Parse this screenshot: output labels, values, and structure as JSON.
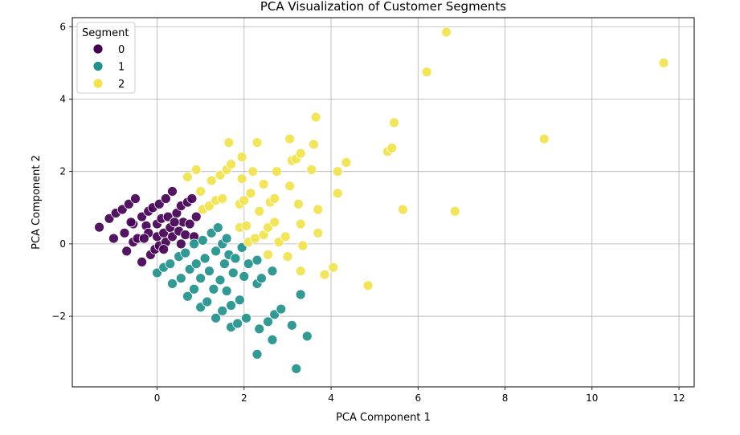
{
  "chart_data": {
    "type": "scatter",
    "title": "PCA Visualization of Customer Segments",
    "xlabel": "PCA Component 1",
    "ylabel": "PCA Component 2",
    "xlim": [
      -1.95,
      12.35
    ],
    "ylim": [
      -3.95,
      6.25
    ],
    "xticks": [
      0,
      2,
      4,
      6,
      8,
      10,
      12
    ],
    "yticks": [
      -2,
      0,
      2,
      4,
      6
    ],
    "xtick_labels": [
      "0",
      "2",
      "4",
      "6",
      "8",
      "10",
      "12"
    ],
    "ytick_labels": [
      "−2",
      "0",
      "2",
      "4",
      "6"
    ],
    "grid": true,
    "legend": {
      "title": "Segment",
      "placement": "top-left"
    },
    "series": [
      {
        "name": "0",
        "color": "#440154",
        "points": [
          [
            -1.33,
            0.46
          ],
          [
            -1.1,
            0.7
          ],
          [
            -1.0,
            0.15
          ],
          [
            -0.95,
            0.85
          ],
          [
            -0.8,
            0.95
          ],
          [
            -0.75,
            0.3
          ],
          [
            -0.65,
            1.1
          ],
          [
            -0.55,
            0.55
          ],
          [
            -0.5,
            1.25
          ],
          [
            -0.7,
            -0.2
          ],
          [
            -0.55,
            0.05
          ],
          [
            -0.45,
            0.15
          ],
          [
            -0.35,
            0.75
          ],
          [
            -0.35,
            -0.5
          ],
          [
            -0.25,
            0.5
          ],
          [
            -0.2,
            0.9
          ],
          [
            -0.2,
            0.3
          ],
          [
            -0.15,
            -0.3
          ],
          [
            -0.1,
            1.0
          ],
          [
            -0.05,
            -0.15
          ],
          [
            0.0,
            0.2
          ],
          [
            0.0,
            0.55
          ],
          [
            0.05,
            1.1
          ],
          [
            0.05,
            -0.05
          ],
          [
            0.1,
            0.7
          ],
          [
            0.15,
            0.3
          ],
          [
            0.2,
            1.25
          ],
          [
            0.2,
            0.05
          ],
          [
            0.25,
            0.75
          ],
          [
            0.3,
            0.45
          ],
          [
            0.35,
            1.45
          ],
          [
            0.35,
            0.2
          ],
          [
            0.45,
            0.85
          ],
          [
            0.5,
            0.35
          ],
          [
            0.55,
            1.05
          ],
          [
            0.55,
            0.0
          ],
          [
            0.6,
            0.6
          ],
          [
            0.65,
            0.25
          ],
          [
            0.7,
            1.15
          ],
          [
            0.75,
            0.55
          ],
          [
            0.8,
            1.25
          ],
          [
            0.85,
            0.2
          ],
          [
            0.9,
            0.75
          ],
          [
            -0.6,
            0.6
          ],
          [
            -0.3,
            0.15
          ],
          [
            0.4,
            0.6
          ],
          [
            0.15,
            -0.15
          ]
        ]
      },
      {
        "name": "1",
        "color": "#21918c",
        "points": [
          [
            0.0,
            -0.8
          ],
          [
            0.15,
            -0.65
          ],
          [
            0.3,
            -0.55
          ],
          [
            0.35,
            -1.1
          ],
          [
            0.5,
            -0.35
          ],
          [
            0.55,
            -0.95
          ],
          [
            0.65,
            -0.25
          ],
          [
            0.7,
            -1.45
          ],
          [
            0.75,
            -0.7
          ],
          [
            0.85,
            0.0
          ],
          [
            0.85,
            -1.25
          ],
          [
            0.9,
            -0.55
          ],
          [
            1.0,
            -1.75
          ],
          [
            1.0,
            -0.95
          ],
          [
            1.05,
            0.1
          ],
          [
            1.1,
            -0.4
          ],
          [
            1.15,
            -1.6
          ],
          [
            1.2,
            -0.75
          ],
          [
            1.25,
            0.3
          ],
          [
            1.3,
            -1.25
          ],
          [
            1.35,
            -0.2
          ],
          [
            1.35,
            -2.05
          ],
          [
            1.4,
            0.45
          ],
          [
            1.45,
            -1.0
          ],
          [
            1.5,
            -1.85
          ],
          [
            1.5,
            0.0
          ],
          [
            1.55,
            -0.55
          ],
          [
            1.6,
            -1.3
          ],
          [
            1.6,
            0.15
          ],
          [
            1.65,
            -0.3
          ],
          [
            1.7,
            -1.7
          ],
          [
            1.7,
            -2.3
          ],
          [
            1.75,
            -0.8
          ],
          [
            1.8,
            -0.4
          ],
          [
            1.85,
            -2.2
          ],
          [
            1.9,
            -1.55
          ],
          [
            1.95,
            -0.1
          ],
          [
            2.0,
            -0.9
          ],
          [
            2.05,
            -2.05
          ],
          [
            2.1,
            -0.55
          ],
          [
            2.3,
            -0.45
          ],
          [
            2.3,
            -1.1
          ],
          [
            2.3,
            -3.05
          ],
          [
            2.35,
            -2.35
          ],
          [
            2.4,
            -0.95
          ],
          [
            2.55,
            -2.15
          ],
          [
            2.65,
            -0.75
          ],
          [
            2.65,
            -2.65
          ],
          [
            2.7,
            -1.95
          ],
          [
            2.85,
            -1.8
          ],
          [
            3.1,
            -2.25
          ],
          [
            3.2,
            -3.45
          ],
          [
            3.3,
            -1.4
          ],
          [
            3.45,
            -2.55
          ]
        ]
      },
      {
        "name": "2",
        "color": "#f2e34c",
        "points": [
          [
            0.7,
            1.85
          ],
          [
            0.9,
            2.05
          ],
          [
            1.0,
            1.45
          ],
          [
            1.05,
            0.95
          ],
          [
            1.2,
            1.05
          ],
          [
            1.25,
            1.75
          ],
          [
            1.35,
            1.2
          ],
          [
            1.45,
            1.9
          ],
          [
            1.5,
            1.25
          ],
          [
            1.6,
            2.05
          ],
          [
            1.65,
            2.8
          ],
          [
            1.7,
            2.2
          ],
          [
            1.9,
            1.1
          ],
          [
            1.9,
            0.45
          ],
          [
            1.95,
            1.8
          ],
          [
            1.95,
            2.4
          ],
          [
            2.0,
            1.2
          ],
          [
            2.05,
            0.5
          ],
          [
            2.1,
            0.05
          ],
          [
            2.15,
            1.4
          ],
          [
            2.2,
            2.0
          ],
          [
            2.25,
            0.15
          ],
          [
            2.3,
            2.8
          ],
          [
            2.35,
            0.9
          ],
          [
            2.45,
            0.25
          ],
          [
            2.45,
            1.65
          ],
          [
            2.55,
            0.45
          ],
          [
            2.55,
            -0.3
          ],
          [
            2.6,
            1.15
          ],
          [
            2.7,
            0.6
          ],
          [
            2.7,
            1.25
          ],
          [
            2.75,
            2.0
          ],
          [
            2.8,
            0.05
          ],
          [
            2.95,
            0.2
          ],
          [
            3.0,
            -0.35
          ],
          [
            3.05,
            1.6
          ],
          [
            3.05,
            2.9
          ],
          [
            3.1,
            2.3
          ],
          [
            3.2,
            2.35
          ],
          [
            3.25,
            1.1
          ],
          [
            3.3,
            2.5
          ],
          [
            3.3,
            0.55
          ],
          [
            3.3,
            -0.75
          ],
          [
            3.35,
            -0.05
          ],
          [
            3.55,
            2.05
          ],
          [
            3.6,
            2.75
          ],
          [
            3.65,
            3.5
          ],
          [
            3.7,
            0.95
          ],
          [
            3.7,
            0.3
          ],
          [
            3.85,
            -0.85
          ],
          [
            4.05,
            -0.65
          ],
          [
            4.15,
            2.0
          ],
          [
            4.15,
            1.4
          ],
          [
            4.35,
            2.25
          ],
          [
            4.85,
            -1.15
          ],
          [
            5.3,
            2.55
          ],
          [
            5.4,
            2.65
          ],
          [
            5.45,
            3.35
          ],
          [
            5.65,
            0.95
          ],
          [
            6.2,
            4.75
          ],
          [
            6.65,
            5.85
          ],
          [
            6.85,
            0.9
          ],
          [
            8.9,
            2.9
          ],
          [
            11.65,
            5.0
          ]
        ]
      }
    ]
  }
}
